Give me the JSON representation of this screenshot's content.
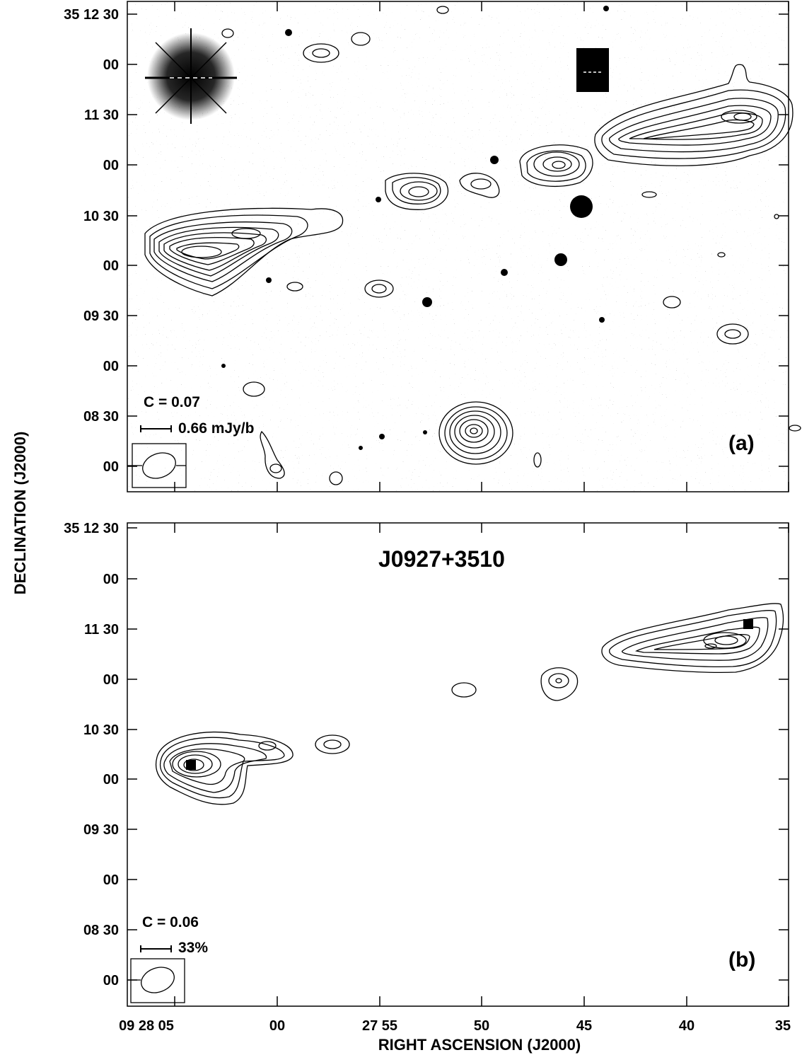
{
  "figure": {
    "source_name": "J0927+3510",
    "x_axis_title": "RIGHT ASCENSION (J2000)",
    "y_axis_title": "DECLINATION (J2000)",
    "x_tick_labels": [
      "09 28 05",
      "00",
      "27 55",
      "50",
      "45",
      "40",
      "35"
    ],
    "y_tick_labels": [
      "35 12 30",
      "00",
      "11 30",
      "00",
      "10 30",
      "00",
      "09 30",
      "00",
      "08 30",
      "00"
    ]
  },
  "panels": [
    {
      "id": "a",
      "label": "(a)",
      "contour_base": "C  = 0.07",
      "vector_scale": "0.66 mJy/b",
      "has_optical_overlay": true
    },
    {
      "id": "b",
      "label": "(b)",
      "contour_base": "C  = 0.06",
      "vector_scale": "33%",
      "has_optical_overlay": false
    }
  ]
}
